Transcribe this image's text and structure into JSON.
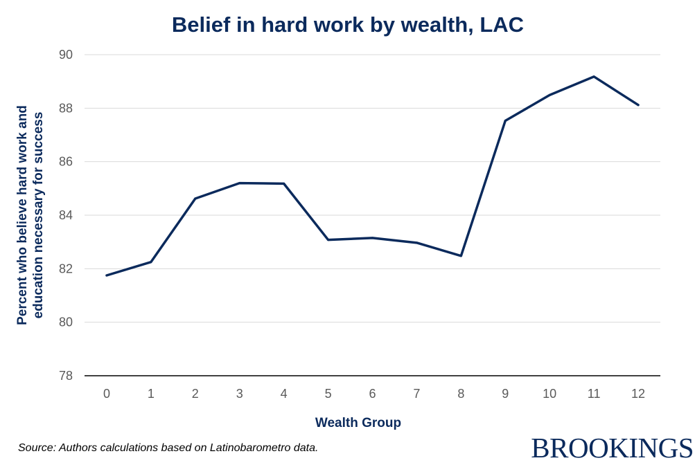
{
  "chart_data": {
    "type": "line",
    "title": "Belief in hard work by wealth, LAC",
    "xlabel": "Wealth Group",
    "ylabel_lines": [
      "Percent who believe hard work and",
      "education necessary for success"
    ],
    "x": [
      0,
      1,
      2,
      3,
      4,
      5,
      6,
      7,
      8,
      9,
      10,
      11,
      12
    ],
    "x_tick_labels": [
      "0",
      "1",
      "2",
      "3",
      "4",
      "5",
      "6",
      "7",
      "8",
      "9",
      "10",
      "11",
      "12"
    ],
    "series": [
      {
        "values": [
          81.75,
          82.25,
          84.62,
          85.2,
          85.18,
          83.08,
          83.15,
          82.97,
          82.48,
          87.53,
          88.49,
          89.18,
          88.12
        ]
      }
    ],
    "ylim": [
      78,
      90
    ],
    "y_ticks": [
      78,
      80,
      82,
      84,
      86,
      88,
      90
    ],
    "grid": true,
    "legend": "none",
    "line_color": "#0b2a5c",
    "grid_color": "#d9d9d9"
  },
  "footer": {
    "source": "Source: Authors calculations based on Latinobarometro data.",
    "logo": "BROOKINGS"
  }
}
